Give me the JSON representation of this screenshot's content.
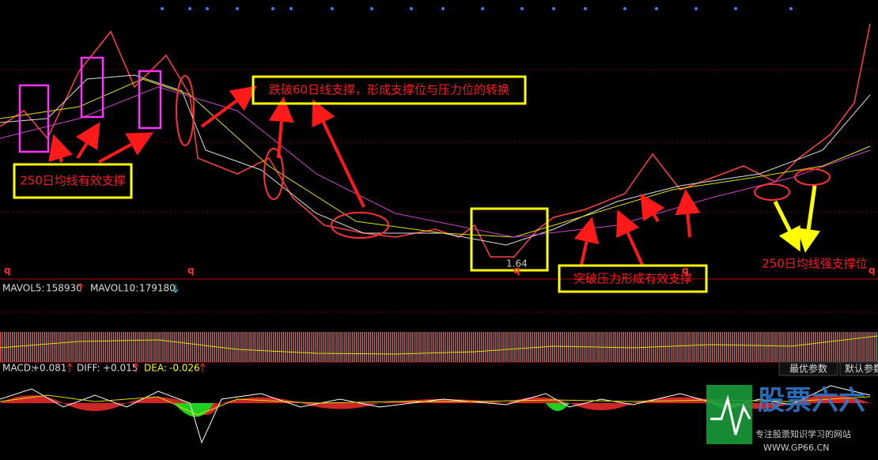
{
  "main_panel": {
    "markers": [
      "q",
      "q",
      "q",
      "q",
      "q"
    ],
    "low_price_label": "1.64",
    "annotations": {
      "top_center": "跌破60日线支撑，形成支撑位与压力位的转换",
      "left": "250日均线有效支撑",
      "bottom_center": "突破压力形成有效支撑",
      "right": "250日均线强支撑位"
    }
  },
  "volume_panel": {
    "mavol5_label": "MAVOL5:",
    "mavol5": "158930",
    "mavol10_label": "MAVOL10:",
    "mavol10": "179180"
  },
  "macd_panel": {
    "macd_label": "MACD:",
    "macd": "+0.081",
    "diff_label": "DIFF:",
    "diff": "+0.015",
    "dea_label": "DEA:",
    "dea": "-0.026",
    "buttons": [
      "最优参数",
      "默认参数"
    ]
  },
  "watermark": {
    "title": "股票六六",
    "subtitle": "专注股票知识学习的网站",
    "url": "WWW.GP66.CN"
  }
}
